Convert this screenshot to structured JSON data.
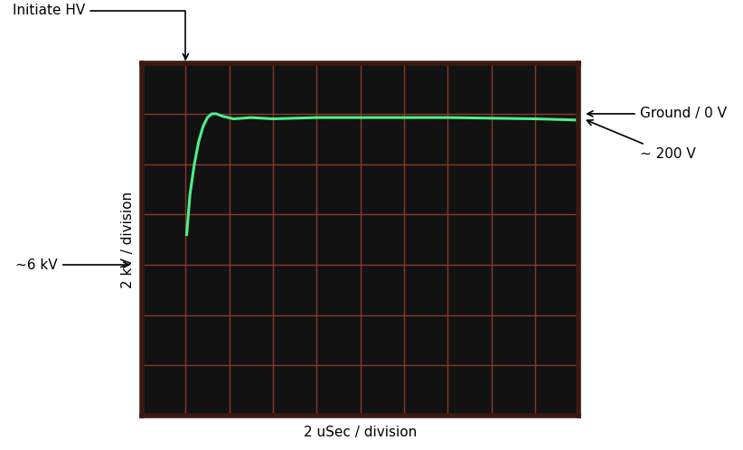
{
  "chart_data": {
    "type": "line",
    "xlabel": "2 uSec / division",
    "ylabel": "2 kV / division",
    "x": [
      2.05,
      2.2,
      2.4,
      2.6,
      2.8,
      3.0,
      3.2,
      3.4,
      3.7,
      4.2,
      5.0,
      6.0,
      8.0,
      10.0,
      14.0,
      18.0,
      20.0
    ],
    "values": [
      -4.8,
      -3.2,
      -2.0,
      -1.1,
      -0.5,
      -0.15,
      0.0,
      0.0,
      -0.1,
      -0.2,
      -0.15,
      -0.2,
      -0.15,
      -0.15,
      -0.15,
      -0.2,
      -0.25
    ],
    "color": "#4cf08a",
    "xlim": [
      0,
      20
    ],
    "xticks": [
      0,
      2,
      4,
      6,
      8,
      10,
      12,
      14,
      16,
      18,
      20
    ],
    "ylim": [
      -12,
      2
    ],
    "yticks": [
      -12,
      -10,
      -8,
      -6,
      -4,
      -2,
      0,
      2
    ],
    "grid": true,
    "tick_labels": false,
    "annotations": [
      {
        "text": "Initiate HV",
        "x": 2
      },
      {
        "text": "~6 kV",
        "y": -6
      },
      {
        "text": "Ground / 0 V",
        "y": 0
      },
      {
        "text": "~ 200 V",
        "y": -0.2
      }
    ]
  }
}
